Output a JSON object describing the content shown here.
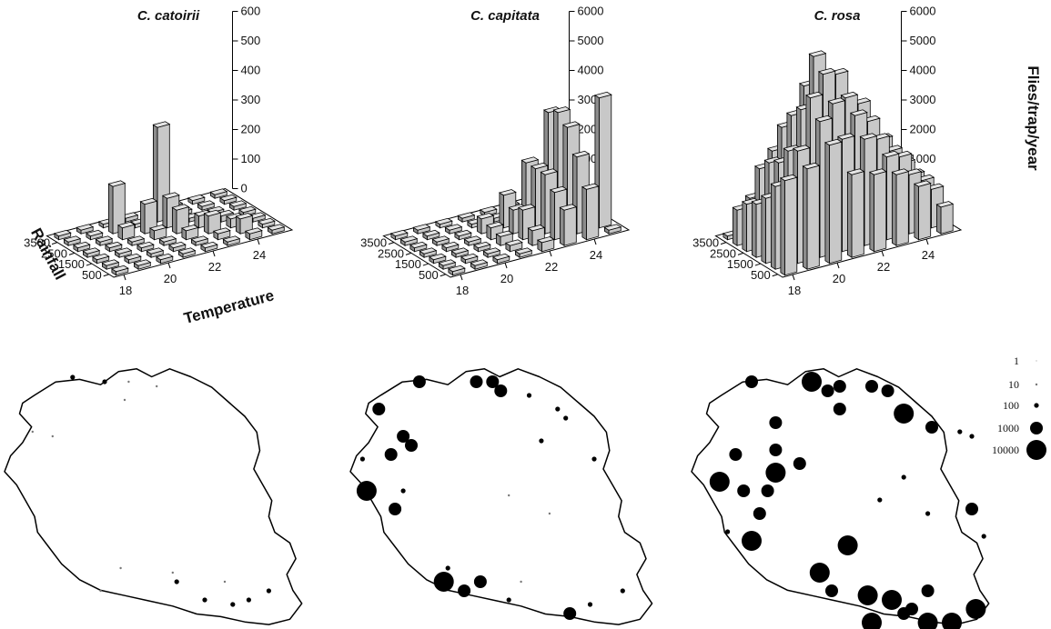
{
  "figure": {
    "titles": [
      "C. catoirii",
      "C. capitata",
      "C. rosa"
    ],
    "axis_labels": {
      "x": "Temperature",
      "y": "Rainfall",
      "z": "Flies/trap/year"
    },
    "legend_labels": [
      "1",
      "10",
      "100",
      "1000",
      "10000"
    ],
    "legend_values": [
      1,
      10,
      100,
      1000,
      10000
    ],
    "colors": {
      "bar_face": "#c8c8c8",
      "bar_top": "#e4e4e4",
      "bar_side": "#8c8c8c",
      "marker": "#000000"
    }
  },
  "chart_data": [
    {
      "type": "bar3d",
      "title": "C. catoirii",
      "xlabel": "Temperature",
      "ylabel": "Rainfall",
      "zlabel": "",
      "x_ticks": [
        "18",
        "20",
        "22",
        "24"
      ],
      "y_ticks": [
        "500",
        "1500",
        "2500",
        "3500"
      ],
      "z_ticks": [
        "0",
        "100",
        "200",
        "300",
        "400",
        "500",
        "600"
      ],
      "zlim": [
        0,
        600
      ],
      "x": [
        18,
        19,
        20,
        21,
        22,
        23,
        24,
        25
      ],
      "y": [
        500,
        1000,
        1500,
        2000,
        2500,
        3000,
        3500
      ],
      "values": [
        [
          0,
          0,
          0,
          0,
          0,
          10,
          20,
          0
        ],
        [
          0,
          0,
          0,
          0,
          10,
          20,
          50,
          0
        ],
        [
          0,
          0,
          0,
          0,
          30,
          60,
          30,
          0
        ],
        [
          0,
          0,
          0,
          30,
          80,
          40,
          20,
          0
        ],
        [
          0,
          0,
          40,
          100,
          100,
          0,
          0,
          0
        ],
        [
          0,
          0,
          160,
          0,
          320,
          0,
          0,
          0
        ],
        [
          0,
          0,
          0,
          0,
          0,
          0,
          0,
          0
        ]
      ]
    },
    {
      "type": "bar3d",
      "title": "C. capitata",
      "xlabel": "",
      "ylabel": "",
      "zlabel": "",
      "x_ticks": [
        "18",
        "20",
        "22",
        "24"
      ],
      "y_ticks": [
        "500",
        "1500",
        "2500",
        "3500"
      ],
      "z_ticks": [
        "0",
        "1000",
        "2000",
        "3000",
        "4000",
        "5000",
        "6000"
      ],
      "zlim": [
        0,
        6000
      ],
      "x": [
        18,
        19,
        20,
        21,
        22,
        23,
        24,
        25
      ],
      "y": [
        500,
        1000,
        1500,
        2000,
        2500,
        3000,
        3500
      ],
      "values": [
        [
          0,
          0,
          0,
          0,
          300,
          1200,
          1700,
          0
        ],
        [
          0,
          0,
          0,
          200,
          500,
          1600,
          2600,
          4400
        ],
        [
          0,
          0,
          100,
          300,
          1000,
          2000,
          3400,
          0
        ],
        [
          0,
          0,
          0,
          400,
          800,
          2000,
          3700,
          0
        ],
        [
          0,
          0,
          0,
          500,
          1100,
          2000,
          3500,
          0
        ],
        [
          0,
          0,
          0,
          0,
          0,
          0,
          0,
          0
        ],
        [
          0,
          0,
          0,
          0,
          0,
          0,
          0,
          0
        ]
      ]
    },
    {
      "type": "bar3d",
      "title": "C. rosa",
      "xlabel": "",
      "ylabel": "",
      "zlabel": "Flies/trap/year",
      "x_ticks": [
        "18",
        "20",
        "22",
        "24"
      ],
      "y_ticks": [
        "500",
        "1500",
        "2500",
        "3500"
      ],
      "z_ticks": [
        "0",
        "1000",
        "2000",
        "3000",
        "4000",
        "5000",
        "6000"
      ],
      "zlim": [
        0,
        6000
      ],
      "x": [
        18,
        19,
        20,
        21,
        22,
        23,
        24,
        25
      ],
      "y": [
        500,
        1000,
        1500,
        2000,
        2500,
        3000,
        3500
      ],
      "values": [
        [
          3200,
          3400,
          4000,
          2800,
          2600,
          2400,
          1800,
          900
        ],
        [
          2800,
          3800,
          4600,
          3800,
          3600,
          2800,
          2000,
          1300
        ],
        [
          2200,
          3600,
          5200,
          4800,
          4200,
          3200,
          2400,
          1400
        ],
        [
          1800,
          3000,
          4600,
          5600,
          4600,
          3600,
          2400,
          1400
        ],
        [
          1600,
          2800,
          4200,
          6000,
          5200,
          4000,
          2600,
          1600
        ],
        [
          1200,
          2400,
          3600,
          4800,
          4400,
          3200,
          0,
          0
        ],
        [
          0,
          1200,
          2600,
          3400,
          0,
          0,
          0,
          0
        ]
      ]
    }
  ],
  "map_data": [
    {
      "species": "C. catoirii",
      "sites": [
        {
          "lon": 55.3,
          "lat": -20.88,
          "count": 100
        },
        {
          "lon": 55.38,
          "lat": -20.89,
          "count": 100
        },
        {
          "lon": 55.44,
          "lat": -20.89,
          "count": 10
        },
        {
          "lon": 55.51,
          "lat": -20.9,
          "count": 10
        },
        {
          "lon": 55.2,
          "lat": -21.0,
          "count": 10
        },
        {
          "lon": 55.25,
          "lat": -21.01,
          "count": 10
        },
        {
          "lon": 55.43,
          "lat": -20.93,
          "count": 10
        },
        {
          "lon": 55.55,
          "lat": -21.31,
          "count": 10
        },
        {
          "lon": 55.56,
          "lat": -21.33,
          "count": 100
        },
        {
          "lon": 55.63,
          "lat": -21.37,
          "count": 100
        },
        {
          "lon": 55.7,
          "lat": -21.38,
          "count": 100
        },
        {
          "lon": 55.74,
          "lat": -21.37,
          "count": 100
        },
        {
          "lon": 55.79,
          "lat": -21.35,
          "count": 100
        },
        {
          "lon": 55.42,
          "lat": -21.3,
          "count": 10
        },
        {
          "lon": 55.37,
          "lat": -21.35,
          "count": 10
        },
        {
          "lon": 55.68,
          "lat": -21.33,
          "count": 10
        }
      ]
    },
    {
      "species": "C. capitata",
      "sites": [
        {
          "lon": 55.3,
          "lat": -20.89,
          "count": 1000
        },
        {
          "lon": 55.44,
          "lat": -20.89,
          "count": 1000
        },
        {
          "lon": 55.48,
          "lat": -20.89,
          "count": 1000
        },
        {
          "lon": 55.5,
          "lat": -20.91,
          "count": 1000
        },
        {
          "lon": 55.2,
          "lat": -20.95,
          "count": 1000
        },
        {
          "lon": 55.57,
          "lat": -20.92,
          "count": 100
        },
        {
          "lon": 55.64,
          "lat": -20.95,
          "count": 100
        },
        {
          "lon": 55.66,
          "lat": -20.97,
          "count": 100
        },
        {
          "lon": 55.26,
          "lat": -21.01,
          "count": 1000
        },
        {
          "lon": 55.28,
          "lat": -21.03,
          "count": 1000
        },
        {
          "lon": 55.23,
          "lat": -21.05,
          "count": 1000
        },
        {
          "lon": 55.16,
          "lat": -21.06,
          "count": 100
        },
        {
          "lon": 55.17,
          "lat": -21.13,
          "count": 10000
        },
        {
          "lon": 55.26,
          "lat": -21.13,
          "count": 100
        },
        {
          "lon": 55.24,
          "lat": -21.17,
          "count": 1000
        },
        {
          "lon": 55.6,
          "lat": -21.02,
          "count": 100
        },
        {
          "lon": 55.73,
          "lat": -21.06,
          "count": 100
        },
        {
          "lon": 55.36,
          "lat": -21.33,
          "count": 10000
        },
        {
          "lon": 55.45,
          "lat": -21.33,
          "count": 1000
        },
        {
          "lon": 55.41,
          "lat": -21.35,
          "count": 1000
        },
        {
          "lon": 55.37,
          "lat": -21.3,
          "count": 100
        },
        {
          "lon": 55.52,
          "lat": -21.37,
          "count": 100
        },
        {
          "lon": 55.67,
          "lat": -21.4,
          "count": 1000
        },
        {
          "lon": 55.72,
          "lat": -21.38,
          "count": 100
        },
        {
          "lon": 55.8,
          "lat": -21.35,
          "count": 100
        },
        {
          "lon": 55.52,
          "lat": -21.14,
          "count": 10
        },
        {
          "lon": 55.62,
          "lat": -21.18,
          "count": 10
        },
        {
          "lon": 55.55,
          "lat": -21.33,
          "count": 10
        }
      ]
    },
    {
      "species": "C. rosa",
      "sites": [
        {
          "lon": 55.28,
          "lat": -20.89,
          "count": 1000
        },
        {
          "lon": 55.43,
          "lat": -20.89,
          "count": 10000
        },
        {
          "lon": 55.47,
          "lat": -20.91,
          "count": 1000
        },
        {
          "lon": 55.5,
          "lat": -20.9,
          "count": 1000
        },
        {
          "lon": 55.62,
          "lat": -20.91,
          "count": 1000
        },
        {
          "lon": 55.58,
          "lat": -20.9,
          "count": 1000
        },
        {
          "lon": 55.5,
          "lat": -20.95,
          "count": 1000
        },
        {
          "lon": 55.66,
          "lat": -20.96,
          "count": 10000
        },
        {
          "lon": 55.73,
          "lat": -20.99,
          "count": 1000
        },
        {
          "lon": 55.8,
          "lat": -21.0,
          "count": 100
        },
        {
          "lon": 55.83,
          "lat": -21.01,
          "count": 100
        },
        {
          "lon": 55.34,
          "lat": -20.98,
          "count": 1000
        },
        {
          "lon": 55.24,
          "lat": -21.05,
          "count": 1000
        },
        {
          "lon": 55.34,
          "lat": -21.04,
          "count": 1000
        },
        {
          "lon": 55.4,
          "lat": -21.07,
          "count": 1000
        },
        {
          "lon": 55.34,
          "lat": -21.09,
          "count": 10000
        },
        {
          "lon": 55.2,
          "lat": -21.11,
          "count": 10000
        },
        {
          "lon": 55.26,
          "lat": -21.13,
          "count": 1000
        },
        {
          "lon": 55.32,
          "lat": -21.13,
          "count": 1000
        },
        {
          "lon": 55.3,
          "lat": -21.18,
          "count": 1000
        },
        {
          "lon": 55.28,
          "lat": -21.24,
          "count": 10000
        },
        {
          "lon": 55.22,
          "lat": -21.22,
          "count": 100
        },
        {
          "lon": 55.66,
          "lat": -21.1,
          "count": 100
        },
        {
          "lon": 55.6,
          "lat": -21.15,
          "count": 100
        },
        {
          "lon": 55.83,
          "lat": -21.17,
          "count": 1000
        },
        {
          "lon": 55.72,
          "lat": -21.18,
          "count": 100
        },
        {
          "lon": 55.86,
          "lat": -21.23,
          "count": 100
        },
        {
          "lon": 55.52,
          "lat": -21.25,
          "count": 10000
        },
        {
          "lon": 55.45,
          "lat": -21.31,
          "count": 10000
        },
        {
          "lon": 55.48,
          "lat": -21.35,
          "count": 1000
        },
        {
          "lon": 55.57,
          "lat": -21.36,
          "count": 10000
        },
        {
          "lon": 55.63,
          "lat": -21.37,
          "count": 10000
        },
        {
          "lon": 55.66,
          "lat": -21.4,
          "count": 1000
        },
        {
          "lon": 55.72,
          "lat": -21.42,
          "count": 10000
        },
        {
          "lon": 55.78,
          "lat": -21.42,
          "count": 10000
        },
        {
          "lon": 55.84,
          "lat": -21.39,
          "count": 10000
        },
        {
          "lon": 55.72,
          "lat": -21.35,
          "count": 1000
        },
        {
          "lon": 55.58,
          "lat": -21.42,
          "count": 10000
        },
        {
          "lon": 55.68,
          "lat": -21.39,
          "count": 1000
        }
      ]
    }
  ]
}
